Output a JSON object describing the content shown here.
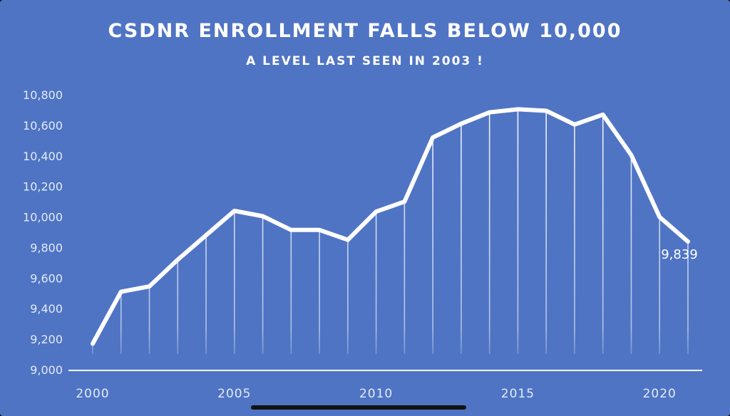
{
  "chart_data": {
    "type": "line",
    "title": "CSDNR ENROLLMENT FALLS BELOW 10,000",
    "subtitle": "A LEVEL LAST SEEN IN 2003 !",
    "xlabel": "",
    "ylabel": "",
    "x": [
      2000,
      2001,
      2002,
      2003,
      2004,
      2005,
      2006,
      2007,
      2008,
      2009,
      2010,
      2011,
      2012,
      2013,
      2014,
      2015,
      2016,
      2017,
      2018,
      2019,
      2020,
      2021
    ],
    "series": [
      {
        "name": "",
        "values": [
          9170,
          9510,
          9545,
          9720,
          9880,
          10040,
          10005,
          9915,
          9915,
          9850,
          10035,
          10100,
          10520,
          10610,
          10685,
          10705,
          10695,
          10605,
          10670,
          10405,
          10000,
          9839
        ]
      }
    ],
    "ylim": [
      9000,
      10800
    ],
    "xlim": [
      2000,
      2021
    ],
    "y_ticks": [
      9000,
      9200,
      9400,
      9600,
      9800,
      10000,
      10200,
      10400,
      10600,
      10800
    ],
    "y_tick_labels": [
      "9,000",
      "9,200",
      "9,400",
      "9,600",
      "9,800",
      "10,000",
      "10,200",
      "10,400",
      "10,600",
      "10,800"
    ],
    "x_ticks": [
      2000,
      2005,
      2010,
      2015,
      2020
    ],
    "x_tick_labels": [
      "2000",
      "2005",
      "2010",
      "2015",
      "2020"
    ],
    "annotation": {
      "x": 2021,
      "y": 9839,
      "text": "9,839"
    },
    "drop_lines": true,
    "grid": false,
    "legend": "none",
    "colors": {
      "background": "#4f74c4",
      "line": "#ffffff",
      "text": "#ffffff",
      "tick_text": "#e4ebf7"
    }
  }
}
